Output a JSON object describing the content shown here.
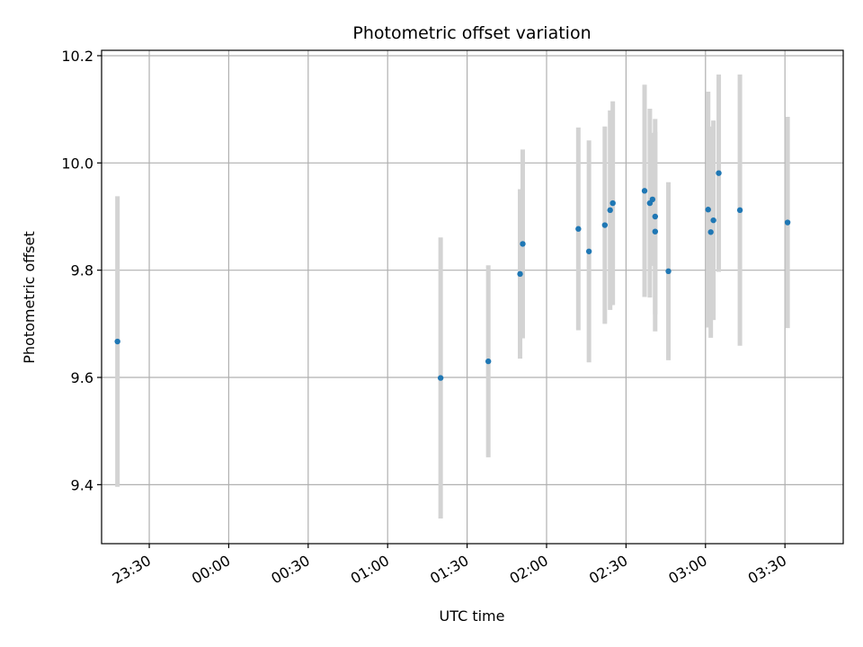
{
  "chart_data": {
    "type": "scatter",
    "title": "Photometric offset variation",
    "xlabel": "UTC time",
    "ylabel": "Photometric offset",
    "grid": true,
    "x_is_time": true,
    "xlim": [
      "23:12",
      "03:52"
    ],
    "ylim": [
      9.29,
      10.21
    ],
    "y_ticks": [
      9.4,
      9.6,
      9.8,
      10.0,
      10.2
    ],
    "y_tick_labels": [
      "9.4",
      "9.6",
      "9.8",
      "10.0",
      "10.2"
    ],
    "x_ticks": [
      "23:30",
      "00:00",
      "00:30",
      "01:00",
      "01:30",
      "02:00",
      "02:30",
      "03:00",
      "03:30"
    ],
    "x_tick_labels": [
      "23:30",
      "00:00",
      "00:30",
      "01:00",
      "01:30",
      "02:00",
      "02:30",
      "03:00",
      "03:30"
    ],
    "colors": {
      "point": "#1f77b4",
      "errorbar": "#d3d3d3",
      "grid": "#b0b0b0"
    },
    "series": [
      {
        "points": [
          {
            "x": "23:18",
            "y": 9.667,
            "yerr": 0.271
          },
          {
            "x": "01:20",
            "y": 9.599,
            "yerr": 0.262
          },
          {
            "x": "01:38",
            "y": 9.63,
            "yerr": 0.179
          },
          {
            "x": "01:50",
            "y": 9.793,
            "yerr": 0.158
          },
          {
            "x": "01:51",
            "y": 9.849,
            "yerr": 0.176
          },
          {
            "x": "02:12",
            "y": 9.877,
            "yerr": 0.189
          },
          {
            "x": "02:16",
            "y": 9.835,
            "yerr": 0.207
          },
          {
            "x": "02:22",
            "y": 9.884,
            "yerr": 0.184
          },
          {
            "x": "02:24",
            "y": 9.912,
            "yerr": 0.186
          },
          {
            "x": "02:25",
            "y": 9.925,
            "yerr": 0.19
          },
          {
            "x": "02:37",
            "y": 9.948,
            "yerr": 0.198
          },
          {
            "x": "02:39",
            "y": 9.925,
            "yerr": 0.176
          },
          {
            "x": "02:40",
            "y": 9.932,
            "yerr": 0.124
          },
          {
            "x": "02:41",
            "y": 9.872,
            "yerr": 0.186
          },
          {
            "x": "02:41",
            "y": 9.9,
            "yerr": 0.182
          },
          {
            "x": "02:46",
            "y": 9.798,
            "yerr": 0.166
          },
          {
            "x": "03:01",
            "y": 9.913,
            "yerr": 0.22
          },
          {
            "x": "03:02",
            "y": 9.871,
            "yerr": 0.197
          },
          {
            "x": "03:03",
            "y": 9.893,
            "yerr": 0.186
          },
          {
            "x": "03:05",
            "y": 9.981,
            "yerr": 0.184
          },
          {
            "x": "03:13",
            "y": 9.912,
            "yerr": 0.253
          },
          {
            "x": "03:31",
            "y": 9.889,
            "yerr": 0.197
          }
        ]
      }
    ]
  }
}
